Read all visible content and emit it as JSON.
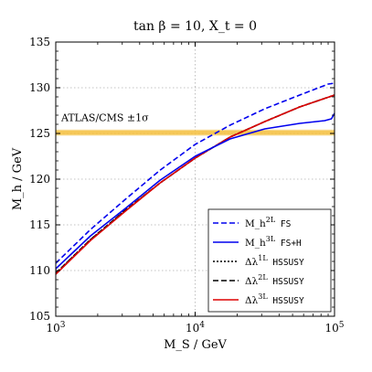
{
  "chart_data": {
    "type": "line",
    "title": "tan β = 10, X_t = 0",
    "xlabel": "M_S / GeV",
    "ylabel": "M_h / GeV",
    "x_scale": "log",
    "xlim": [
      1000,
      100000
    ],
    "ylim": [
      105,
      135
    ],
    "x_ticks": [
      1000,
      10000,
      100000
    ],
    "x_tick_labels": [
      "10^3",
      "10^4",
      "10^5"
    ],
    "y_ticks": [
      105,
      110,
      115,
      120,
      125,
      130,
      135
    ],
    "grid": true,
    "band": {
      "label": "ATLAS/CMS ±1σ",
      "center": 125.09,
      "halfwidth": 0.24,
      "color": "#f5c043"
    },
    "legend_position": "lower right",
    "series": [
      {
        "name": "M_h^{2L} FS",
        "color": "#0000ee",
        "style": "dashed",
        "x": [
          1000,
          1778,
          3162,
          5623,
          10000,
          17783,
          31623,
          56234,
          90000,
          100000
        ],
        "y": [
          110.8,
          114.5,
          117.8,
          121.0,
          123.8,
          125.9,
          127.7,
          129.2,
          130.4,
          130.5
        ]
      },
      {
        "name": "M_h^{3L} FS+H",
        "color": "#0000ee",
        "style": "solid",
        "x": [
          1000,
          1778,
          3162,
          5623,
          10000,
          17783,
          31623,
          56234,
          85000,
          95000,
          100000
        ],
        "y": [
          110.2,
          113.8,
          116.8,
          119.9,
          122.5,
          124.4,
          125.5,
          126.1,
          126.4,
          126.6,
          127.2
        ]
      },
      {
        "name": "Δλ^{1L} HSSUSY",
        "color": "#000000",
        "style": "dotted",
        "x": [
          1000,
          1778,
          3162,
          5623,
          10000,
          17783,
          31623,
          56234,
          100000
        ],
        "y": [
          109.7,
          113.4,
          116.6,
          119.6,
          122.3,
          124.6,
          126.3,
          127.9,
          129.2
        ]
      },
      {
        "name": "Δλ^{2L} HSSUSY",
        "color": "#000000",
        "style": "dashed",
        "x": [
          1000,
          1778,
          3162,
          5623,
          10000,
          17783,
          31623,
          56234,
          100000
        ],
        "y": [
          109.7,
          113.4,
          116.6,
          119.6,
          122.3,
          124.6,
          126.3,
          127.9,
          129.2
        ]
      },
      {
        "name": "Δλ^{3L} HSSUSY",
        "color": "#dd0000",
        "style": "solid",
        "x": [
          1000,
          1778,
          3162,
          5623,
          10000,
          17783,
          31623,
          56234,
          100000
        ],
        "y": [
          109.6,
          113.3,
          116.5,
          119.6,
          122.3,
          124.6,
          126.3,
          127.9,
          129.2
        ]
      }
    ]
  }
}
